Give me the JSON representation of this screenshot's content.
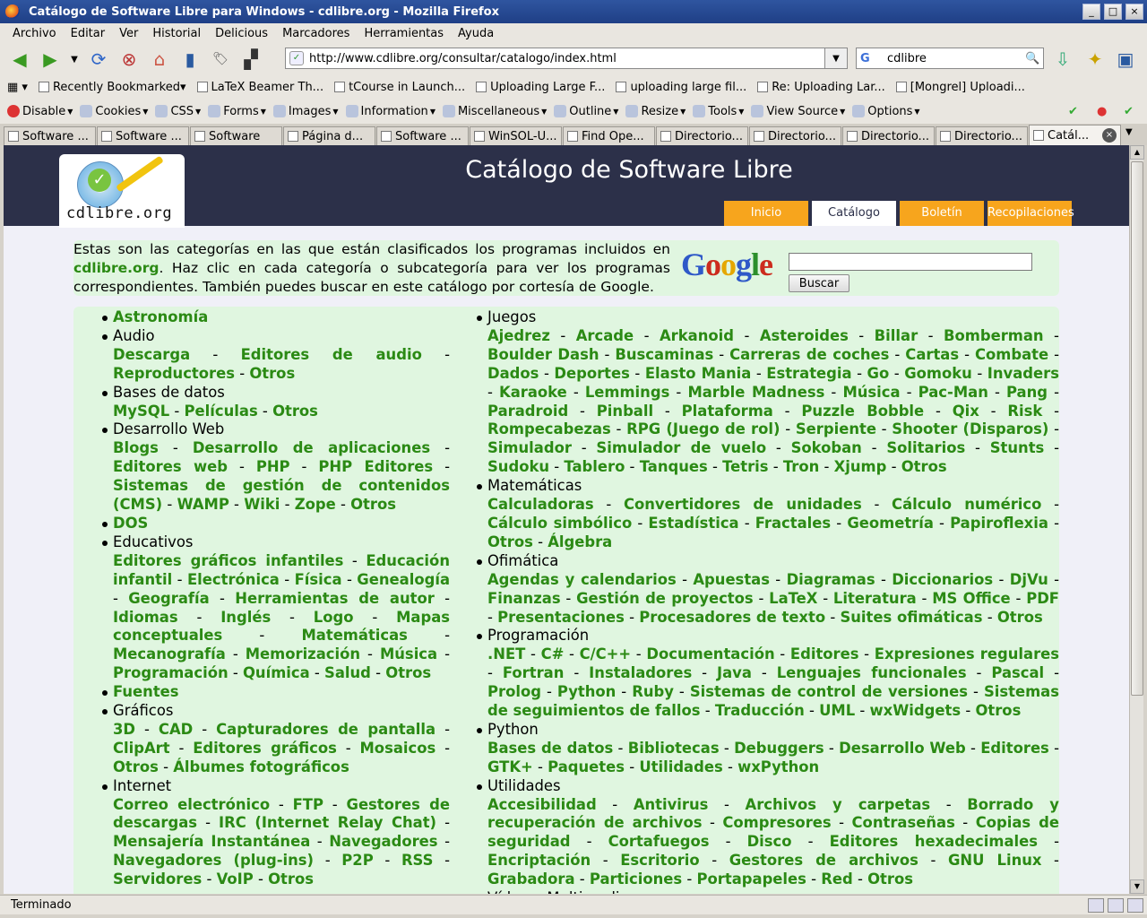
{
  "window": {
    "title": "Catálogo de Software Libre para Windows - cdlibre.org - Mozilla Firefox"
  },
  "menu": [
    "Archivo",
    "Editar",
    "Ver",
    "Historial",
    "Delicious",
    "Marcadores",
    "Herramientas",
    "Ayuda"
  ],
  "nav": {
    "url": "http://www.cdlibre.org/consultar/catalogo/index.html",
    "search_engine": "G",
    "search_value": "cdlibre"
  },
  "bookmarks": [
    "Recently Bookmarked",
    "LaTeX Beamer Th...",
    "tCourse in Launch...",
    "Uploading Large F...",
    "uploading large fil...",
    "Re: Uploading Lar...",
    "[Mongrel] Uploadi..."
  ],
  "webdev": [
    "Disable",
    "Cookies",
    "CSS",
    "Forms",
    "Images",
    "Information",
    "Miscellaneous",
    "Outline",
    "Resize",
    "Tools",
    "View Source",
    "Options"
  ],
  "tabs": [
    "Software ...",
    "Software ...",
    "Software",
    "Página d...",
    "Software ...",
    "WinSOL-U...",
    "Find Ope...",
    "Directorio...",
    "Directorio...",
    "Directorio...",
    "Directorio...",
    "Catál..."
  ],
  "page": {
    "logo_text": "cdlibre.org",
    "title": "Catálogo de Software Libre",
    "nav_tabs": [
      "Inicio",
      "Catálogo",
      "Boletín",
      "Recopilaciones"
    ],
    "intro_before": "Estas son las categorías en las que están clasificados los programas incluidos en ",
    "intro_link": "cdlibre.org",
    "intro_after": ". Haz clic en cada categoría o subcategoría para ver los programas correspondientes. También puedes buscar en este catálogo por cortesía de Google.",
    "google_search_label": "Buscar",
    "google_logo": "Google"
  },
  "categories_left": [
    {
      "name": "Astronomía",
      "link": true,
      "subs": []
    },
    {
      "name": "Audio",
      "link": false,
      "subs": [
        "Descarga",
        "Editores de audio",
        "Reproductores",
        "Otros"
      ]
    },
    {
      "name": "Bases de datos",
      "link": false,
      "subs": [
        "MySQL",
        "Películas",
        "Otros"
      ]
    },
    {
      "name": "Desarrollo Web",
      "link": false,
      "subs": [
        "Blogs",
        "Desarrollo de aplicaciones",
        "Editores web",
        "PHP",
        "PHP Editores",
        "Sistemas de gestión de contenidos (CMS)",
        "WAMP",
        "Wiki",
        "Zope",
        "Otros"
      ]
    },
    {
      "name": "DOS",
      "link": true,
      "subs": []
    },
    {
      "name": "Educativos",
      "link": false,
      "subs": [
        "Editores gráficos infantiles",
        "Educación infantil",
        "Electrónica",
        "Física",
        "Genealogía",
        "Geografía",
        "Herramientas de autor",
        "Idiomas",
        "Inglés",
        "Logo",
        "Mapas conceptuales",
        "Matemáticas",
        "Mecanografía",
        "Memorización",
        "Música",
        "Programación",
        "Química",
        "Salud",
        "Otros"
      ]
    },
    {
      "name": "Fuentes",
      "link": true,
      "subs": []
    },
    {
      "name": "Gráficos",
      "link": false,
      "subs": [
        "3D",
        "CAD",
        "Capturadores de pantalla",
        "ClipArt",
        "Editores gráficos",
        "Mosaicos",
        "Otros",
        "Álbumes fotográficos"
      ]
    },
    {
      "name": "Internet",
      "link": false,
      "subs": [
        "Correo electrónico",
        "FTP",
        "Gestores de descargas",
        "IRC (Internet Relay Chat)",
        "Mensajería Instantánea",
        "Navegadores",
        "Navegadores (plug-ins)",
        "P2P",
        "RSS",
        "Servidores",
        "VoIP",
        "Otros"
      ]
    }
  ],
  "categories_right": [
    {
      "name": "Juegos",
      "link": false,
      "subs": [
        "Ajedrez",
        "Arcade",
        "Arkanoid",
        "Asteroides",
        "Billar",
        "Bomberman",
        "Boulder Dash",
        "Buscaminas",
        "Carreras de coches",
        "Cartas",
        "Combate",
        "Dados",
        "Deportes",
        "Elasto Mania",
        "Estrategia",
        "Go",
        "Gomoku",
        "Invaders",
        "Karaoke",
        "Lemmings",
        "Marble Madness",
        "Música",
        "Pac-Man",
        "Pang",
        "Paradroid",
        "Pinball",
        "Plataforma",
        "Puzzle Bobble",
        "Qix",
        "Risk",
        "Rompecabezas",
        "RPG (Juego de rol)",
        "Serpiente",
        "Shooter (Disparos)",
        "Simulador",
        "Simulador de vuelo",
        "Sokoban",
        "Solitarios",
        "Stunts",
        "Sudoku",
        "Tablero",
        "Tanques",
        "Tetris",
        "Tron",
        "Xjump",
        "Otros"
      ]
    },
    {
      "name": "Matemáticas",
      "link": false,
      "subs": [
        "Calculadoras",
        "Convertidores de unidades",
        "Cálculo numérico",
        "Cálculo simbólico",
        "Estadística",
        "Fractales",
        "Geometría",
        "Papiroflexia",
        "Otros",
        "Álgebra"
      ]
    },
    {
      "name": "Ofimática",
      "link": false,
      "subs": [
        "Agendas y calendarios",
        "Apuestas",
        "Diagramas",
        "Diccionarios",
        "DjVu",
        "Finanzas",
        "Gestión de proyectos",
        "LaTeX",
        "Literatura",
        "MS Office",
        "PDF",
        "Presentaciones",
        "Procesadores de texto",
        "Suites ofimáticas",
        "Otros"
      ]
    },
    {
      "name": "Programación",
      "link": false,
      "subs": [
        ".NET",
        "C#",
        "C/C++",
        "Documentación",
        "Editores",
        "Expresiones regulares",
        "Fortran",
        "Instaladores",
        "Java",
        "Lenguajes funcionales",
        "Pascal",
        "Prolog",
        "Python",
        "Ruby",
        "Sistemas de control de versiones",
        "Sistemas de seguimientos de fallos",
        "Traducción",
        "UML",
        "wxWidgets",
        "Otros"
      ]
    },
    {
      "name": "Python",
      "link": false,
      "subs": [
        "Bases de datos",
        "Bibliotecas",
        "Debuggers",
        "Desarrollo Web",
        "Editores",
        "GTK+",
        "Paquetes",
        "Utilidades",
        "wxPython"
      ]
    },
    {
      "name": "Utilidades",
      "link": false,
      "subs": [
        "Accesibilidad",
        "Antivirus",
        "Archivos y carpetas",
        "Borrado y recuperación de archivos",
        "Compresores",
        "Contraseñas",
        "Copias de seguridad",
        "Cortafuegos",
        "Disco",
        "Editores hexadecimales",
        "Encriptación",
        "Escritorio",
        "Gestores de archivos",
        "GNU Linux",
        "Grabadora",
        "Particiones",
        "Portapapeles",
        "Red",
        "Otros"
      ]
    },
    {
      "name": "Vídeo y Multimedia",
      "link": false,
      "subs": []
    }
  ],
  "status": {
    "text": "Terminado"
  }
}
